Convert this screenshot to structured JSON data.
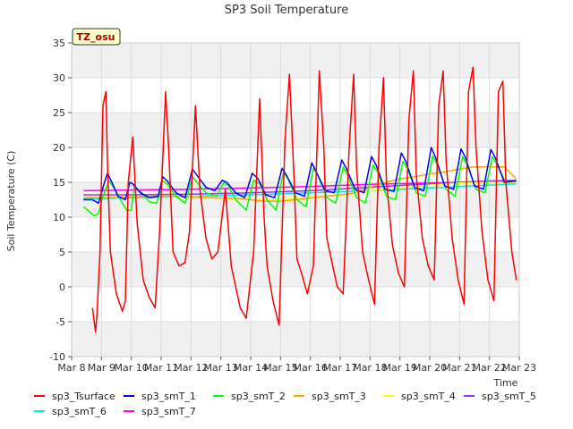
{
  "chart_data": {
    "type": "line",
    "title": "SP3 Soil Temperature",
    "xlabel": "Time",
    "ylabel": "Soil Temperature (C)",
    "ylim": [
      -10,
      35
    ],
    "xlim": [
      0,
      15
    ],
    "yticks": [
      -10,
      -5,
      0,
      5,
      10,
      15,
      20,
      25,
      30,
      35
    ],
    "xtick_labels": [
      "Mar 8",
      "Mar 9",
      "Mar 10",
      "Mar 11",
      "Mar 12",
      "Mar 13",
      "Mar 14",
      "Mar 15",
      "Mar 16",
      "Mar 17",
      "Mar 18",
      "Mar 19",
      "Mar 20",
      "Mar 21",
      "Mar 22",
      "Mar 23"
    ],
    "grid": true,
    "annotation": "TZ_osu",
    "series": [
      {
        "name": "sp3_Tsurface",
        "color": "#ff0000",
        "x": [
          0.7,
          0.8,
          0.85,
          0.95,
          1.05,
          1.15,
          1.2,
          1.3,
          1.5,
          1.7,
          1.8,
          1.9,
          2.05,
          2.2,
          2.4,
          2.6,
          2.8,
          2.95,
          3.15,
          3.25,
          3.4,
          3.6,
          3.8,
          3.95,
          4.15,
          4.3,
          4.5,
          4.7,
          4.9,
          5.15,
          5.35,
          5.5,
          5.65,
          5.85,
          6.1,
          6.3,
          6.45,
          6.55,
          6.75,
          6.95,
          7.15,
          7.3,
          7.45,
          7.55,
          7.7,
          7.9,
          8.1,
          8.3,
          8.45,
          8.55,
          8.7,
          8.9,
          9.1,
          9.3,
          9.45,
          9.55,
          9.75,
          9.95,
          10.15,
          10.3,
          10.45,
          10.55,
          10.75,
          10.95,
          11.15,
          11.3,
          11.45,
          11.55,
          11.75,
          11.95,
          12.15,
          12.3,
          12.45,
          12.55,
          12.75,
          12.95,
          13.15,
          13.3,
          13.45,
          13.55,
          13.75,
          13.95,
          14.15,
          14.3,
          14.45,
          14.55,
          14.75,
          14.9
        ],
        "y": [
          -3.0,
          -6.5,
          -4.0,
          5.0,
          26.0,
          28.0,
          18.0,
          5.0,
          -1.0,
          -3.5,
          -2.0,
          15.0,
          21.5,
          9.0,
          1.0,
          -1.5,
          -3.0,
          8.0,
          28.0,
          20.0,
          5.0,
          3.0,
          3.5,
          8.0,
          26.0,
          14.0,
          7.0,
          4.0,
          5.0,
          14.0,
          3.0,
          0.0,
          -3.0,
          -4.5,
          5.0,
          27.0,
          10.0,
          3.0,
          -2.0,
          -5.5,
          21.0,
          30.5,
          16.0,
          4.0,
          2.0,
          -1.0,
          3.0,
          31.0,
          20.0,
          7.0,
          4.0,
          0.0,
          -1.0,
          20.0,
          30.5,
          17.0,
          5.0,
          1.0,
          -2.5,
          20.0,
          30.0,
          15.0,
          6.0,
          2.0,
          0.0,
          24.0,
          31.0,
          16.0,
          7.0,
          3.0,
          1.0,
          26.0,
          31.0,
          18.0,
          7.0,
          1.0,
          -2.5,
          28.0,
          31.5,
          20.0,
          8.0,
          1.0,
          -2.0,
          28.0,
          29.5,
          15.0,
          5.0,
          1.0
        ]
      },
      {
        "name": "sp3_smT_1",
        "color": "#0000ff",
        "x": [
          0.4,
          0.7,
          0.9,
          1.1,
          1.2,
          1.35,
          1.55,
          1.8,
          1.95,
          2.05,
          2.3,
          2.6,
          2.9,
          3.05,
          3.2,
          3.5,
          3.8,
          4.05,
          4.2,
          4.5,
          4.8,
          5.05,
          5.2,
          5.5,
          5.8,
          6.05,
          6.25,
          6.5,
          6.8,
          7.05,
          7.2,
          7.5,
          7.8,
          8.05,
          8.2,
          8.5,
          8.8,
          9.05,
          9.2,
          9.5,
          9.8,
          10.05,
          10.2,
          10.5,
          10.8,
          11.05,
          11.2,
          11.5,
          11.8,
          12.05,
          12.2,
          12.5,
          12.8,
          13.05,
          13.2,
          13.5,
          13.8,
          14.05,
          14.2,
          14.5,
          14.9
        ],
        "y": [
          12.5,
          12.5,
          12.0,
          15.0,
          16.3,
          15.0,
          13.0,
          12.5,
          15.0,
          14.8,
          13.5,
          12.8,
          13.0,
          15.8,
          15.2,
          13.5,
          12.8,
          16.9,
          16.0,
          14.3,
          13.8,
          15.3,
          15.0,
          13.5,
          12.8,
          16.3,
          15.5,
          13.2,
          12.8,
          17.0,
          16.0,
          13.5,
          13.0,
          17.8,
          16.5,
          13.8,
          13.5,
          18.2,
          17.0,
          14.0,
          13.5,
          18.7,
          17.5,
          14.0,
          13.7,
          19.2,
          18.0,
          14.2,
          13.8,
          20.0,
          18.5,
          14.5,
          14.0,
          19.8,
          18.5,
          14.5,
          14.0,
          19.7,
          18.5,
          15.0,
          15.2
        ]
      },
      {
        "name": "sp3_smT_2",
        "color": "#00ff00",
        "x": [
          0.4,
          0.6,
          0.75,
          0.9,
          1.05,
          1.25,
          1.45,
          1.7,
          1.85,
          2.0,
          2.1,
          2.35,
          2.6,
          2.85,
          3.05,
          3.2,
          3.5,
          3.8,
          4.05,
          4.2,
          4.5,
          4.85,
          5.1,
          5.25,
          5.5,
          5.85,
          6.1,
          6.3,
          6.55,
          6.85,
          7.1,
          7.25,
          7.55,
          7.85,
          8.1,
          8.25,
          8.55,
          8.85,
          9.1,
          9.25,
          9.55,
          9.85,
          10.1,
          10.25,
          10.55,
          10.85,
          11.1,
          11.25,
          11.55,
          11.85,
          12.1,
          12.25,
          12.55,
          12.85,
          13.1,
          13.25,
          13.55,
          13.85,
          14.1,
          14.25,
          14.55,
          14.9
        ],
        "y": [
          11.5,
          10.8,
          10.2,
          10.5,
          13.0,
          15.2,
          14.0,
          12.0,
          11.0,
          11.0,
          14.5,
          13.5,
          12.2,
          12.0,
          15.2,
          14.8,
          13.0,
          12.0,
          15.8,
          15.0,
          13.5,
          13.0,
          15.0,
          14.5,
          12.5,
          11.0,
          15.3,
          14.8,
          12.5,
          11.0,
          16.5,
          15.5,
          12.5,
          11.5,
          17.0,
          16.0,
          12.8,
          12.0,
          17.2,
          16.0,
          12.8,
          12.0,
          17.5,
          16.5,
          13.0,
          12.5,
          18.0,
          17.0,
          13.5,
          13.0,
          18.8,
          17.5,
          14.0,
          13.0,
          18.7,
          17.5,
          14.0,
          13.5,
          18.7,
          17.5,
          15.0,
          15.2
        ]
      },
      {
        "name": "sp3_smT_3",
        "color": "#ffa500",
        "x": [
          0.4,
          1.5,
          2.5,
          3.5,
          4.5,
          5.5,
          6.5,
          7.0,
          7.5,
          8.5,
          9.0,
          9.5,
          10.0,
          10.5,
          11.0,
          11.5,
          12.0,
          12.5,
          13.0,
          13.5,
          14.0,
          14.5,
          14.9
        ],
        "y": [
          12.8,
          12.8,
          13.0,
          13.0,
          12.8,
          12.7,
          12.3,
          12.3,
          12.5,
          13.0,
          13.2,
          13.5,
          14.3,
          15.0,
          15.5,
          15.8,
          16.2,
          16.5,
          16.9,
          17.2,
          17.2,
          17.2,
          15.5
        ]
      },
      {
        "name": "sp3_smT_4",
        "color": "#ffff00",
        "x": [
          0.4,
          2.0,
          4.0,
          5.0,
          6.0,
          7.0,
          8.0,
          9.0,
          10.0,
          11.0,
          12.0,
          13.0,
          14.0,
          14.9
        ],
        "y": [
          13.0,
          13.0,
          13.0,
          12.7,
          12.5,
          12.5,
          12.8,
          13.2,
          13.8,
          14.2,
          14.6,
          14.9,
          15.0,
          15.0
        ]
      },
      {
        "name": "sp3_smT_5",
        "color": "#9b30ff",
        "x": [
          0.4,
          2.0,
          4.0,
          6.0,
          8.0,
          10.0,
          12.0,
          14.0,
          14.9
        ],
        "y": [
          13.2,
          13.2,
          13.3,
          13.5,
          13.8,
          14.3,
          14.8,
          15.2,
          15.3
        ]
      },
      {
        "name": "sp3_smT_6",
        "color": "#00e5ee",
        "x": [
          0.4,
          2.0,
          4.0,
          6.0,
          8.0,
          10.0,
          12.0,
          14.0,
          14.9
        ],
        "y": [
          12.6,
          12.8,
          13.0,
          13.2,
          13.5,
          13.8,
          14.2,
          14.6,
          14.8
        ]
      },
      {
        "name": "sp3_smT_7",
        "color": "#ff00ff",
        "x": [
          0.4,
          2.0,
          4.0,
          6.0,
          8.0,
          10.0,
          12.0,
          14.0,
          14.9
        ],
        "y": [
          13.8,
          13.9,
          14.0,
          14.2,
          14.4,
          14.7,
          14.9,
          15.1,
          15.2
        ]
      }
    ]
  }
}
